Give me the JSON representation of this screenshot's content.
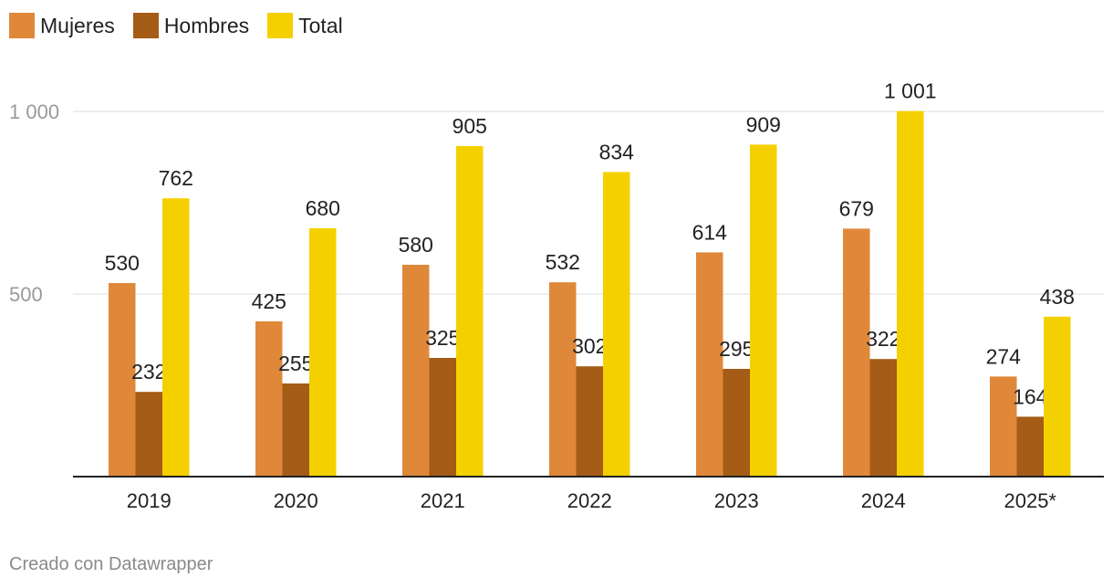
{
  "chart_data": {
    "type": "bar",
    "categories": [
      "2019",
      "2020",
      "2021",
      "2022",
      "2023",
      "2024",
      "2025*"
    ],
    "series": [
      {
        "name": "Mujeres",
        "color": "#e0883a",
        "values": [
          530,
          425,
          580,
          532,
          614,
          679,
          274
        ],
        "labels": [
          "530",
          "425",
          "580",
          "532",
          "614",
          "679",
          "274"
        ]
      },
      {
        "name": "Hombres",
        "color": "#a45c16",
        "values": [
          232,
          255,
          325,
          302,
          295,
          322,
          164
        ],
        "labels": [
          "232",
          "255",
          "325",
          "302",
          "295",
          "322",
          "164"
        ]
      },
      {
        "name": "Total",
        "color": "#f5d000",
        "values": [
          762,
          680,
          905,
          834,
          909,
          1001,
          438
        ],
        "labels": [
          "762",
          "680",
          "905",
          "834",
          "909",
          "1 001",
          "438"
        ]
      }
    ],
    "yticks": [
      500,
      1000
    ],
    "ytick_labels": [
      "500",
      "1 000"
    ],
    "ylim": [
      0,
      1000
    ],
    "grid": true,
    "legend": "top-left"
  },
  "footer": {
    "credit": "Creado con Datawrapper"
  }
}
